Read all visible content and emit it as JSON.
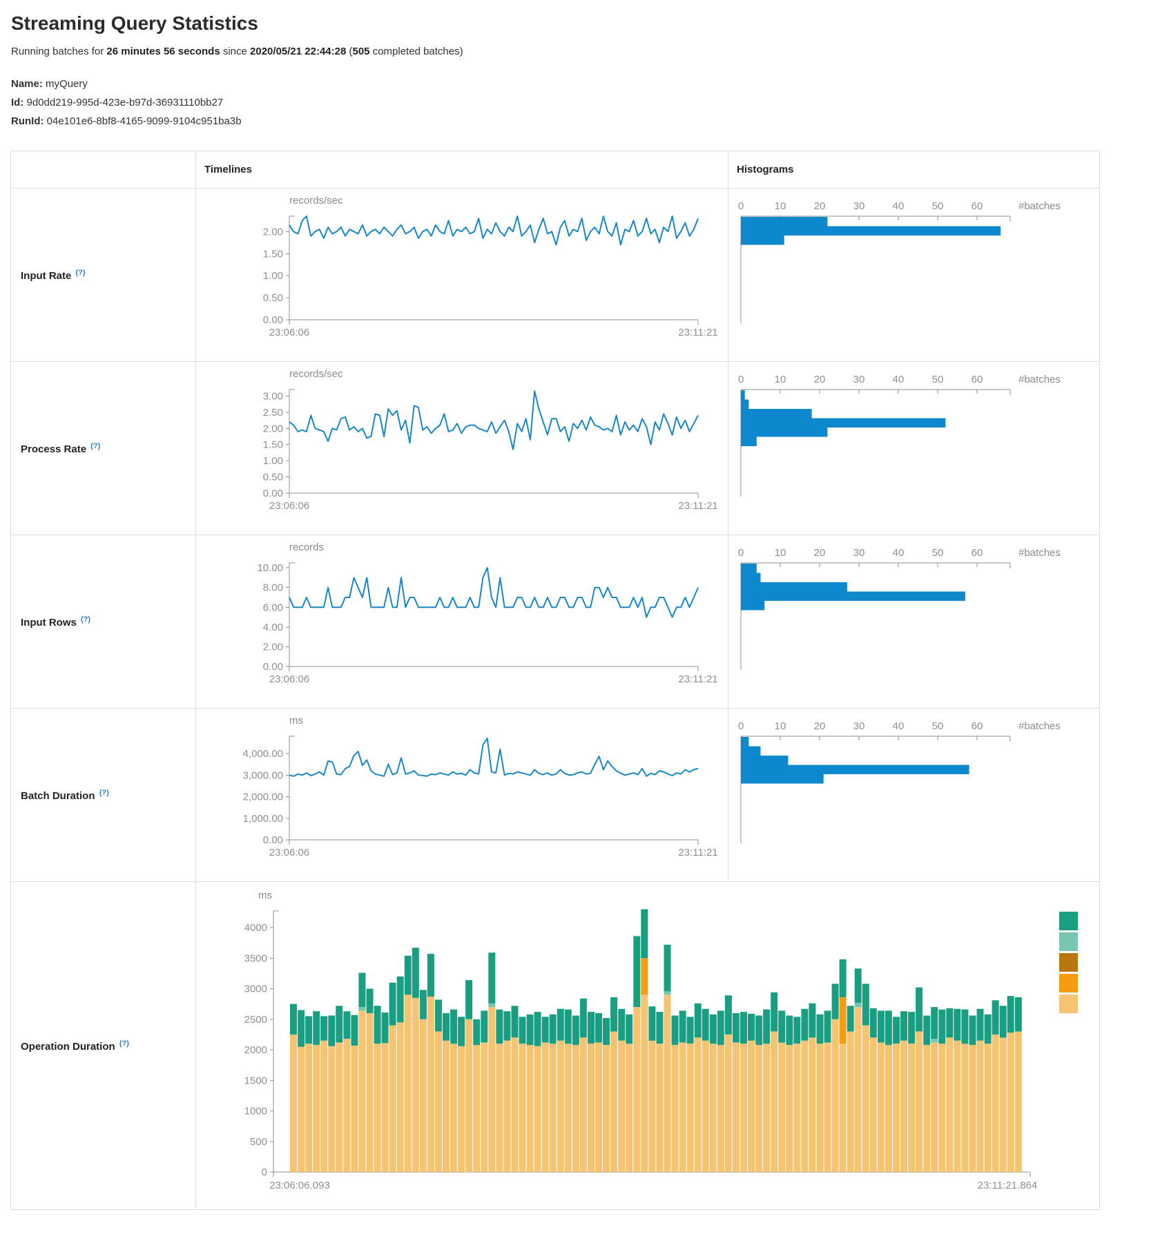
{
  "page": {
    "title": "Streaming Query Statistics",
    "summary": {
      "p1": "Running batches for ",
      "duration": "26 minutes 56 seconds",
      "p2": " since ",
      "start_time": "2020/05/21 22:44:28",
      "p3": " (",
      "completed_batches": "505",
      "p4": " completed batches)"
    },
    "name_label": "Name:",
    "name_value": "myQuery",
    "id_label": "Id:",
    "id_value": "9d0dd219-995d-423e-b97d-36931110bb27",
    "runid_label": "RunId:",
    "runid_value": "04e101e6-8bf8-4165-9099-9104c951ba3b"
  },
  "table": {
    "col_timelines": "Timelines",
    "col_histograms": "Histograms",
    "help_marker": "(?)"
  },
  "colors": {
    "line_blue": "#1787c9",
    "bar_blue": "#0e89ce",
    "axis_gray": "#8f8f8f",
    "label_gray": "#8b8b8b",
    "help_blue": "#2a7fbf",
    "stack_green": "#1a9e82",
    "stack_light_teal": "#76c6b0",
    "stack_brown": "#b8770e",
    "stack_orange": "#f39c12",
    "stack_light_orange": "#f6c470"
  },
  "chart_data": [
    {
      "type": "line+histogram",
      "label": "Input Rate",
      "unit": "records/sec",
      "x_start": "23:06:06",
      "x_end": "23:11:21",
      "ylim": [
        0,
        2.35
      ],
      "y_ticks": [
        {
          "v": 2,
          "t": "2.00"
        },
        {
          "v": 1.5,
          "t": "1.50"
        },
        {
          "v": 1,
          "t": "1.00"
        },
        {
          "v": 0.5,
          "t": "0.50"
        },
        {
          "v": 0,
          "t": "0.00"
        }
      ],
      "values": [
        2.15,
        2.0,
        1.95,
        2.25,
        2.35,
        1.9,
        2.0,
        2.05,
        1.85,
        2.1,
        1.95,
        2.0,
        2.1,
        1.9,
        2.05,
        2.0,
        1.95,
        2.15,
        1.9,
        2.0,
        2.05,
        1.95,
        2.1,
        2.0,
        1.9,
        2.05,
        2.15,
        1.95,
        2.0,
        2.1,
        1.85,
        2.0,
        2.05,
        1.9,
        2.15,
        2.0,
        1.95,
        2.25,
        1.9,
        2.05,
        2.0,
        2.1,
        1.95,
        2.0,
        2.3,
        1.85,
        2.05,
        1.95,
        2.2,
        2.0,
        1.9,
        2.1,
        2.0,
        2.35,
        1.9,
        2.0,
        2.15,
        1.75,
        2.05,
        2.3,
        1.95,
        2.0,
        1.7,
        2.1,
        2.25,
        1.9,
        2.05,
        2.0,
        2.3,
        1.8,
        2.0,
        2.1,
        1.95,
        2.35,
        2.0,
        1.9,
        2.2,
        1.7,
        2.05,
        2.0,
        2.25,
        1.9,
        2.0,
        2.3,
        1.95,
        2.05,
        1.75,
        2.1,
        2.0,
        2.35,
        1.85,
        2.0,
        2.2,
        1.9,
        2.05,
        2.3
      ],
      "histogram": {
        "xlabel": "#batches",
        "ticks": [
          0,
          10,
          20,
          30,
          40,
          50,
          60
        ],
        "values": [
          22,
          66,
          11
        ]
      }
    },
    {
      "type": "line+histogram",
      "label": "Process Rate",
      "unit": "records/sec",
      "x_start": "23:06:06",
      "x_end": "23:11:21",
      "ylim": [
        0,
        3.2
      ],
      "y_ticks": [
        {
          "v": 3,
          "t": "3.00"
        },
        {
          "v": 2.5,
          "t": "2.50"
        },
        {
          "v": 2,
          "t": "2.00"
        },
        {
          "v": 1.5,
          "t": "1.50"
        },
        {
          "v": 1,
          "t": "1.00"
        },
        {
          "v": 0.5,
          "t": "0.50"
        },
        {
          "v": 0,
          "t": "0.00"
        }
      ],
      "values": [
        2.2,
        2.1,
        1.9,
        1.95,
        1.9,
        2.4,
        2.0,
        1.95,
        1.9,
        1.6,
        2.0,
        1.95,
        2.3,
        2.35,
        1.95,
        2.05,
        1.9,
        2.0,
        1.7,
        1.75,
        2.45,
        2.4,
        1.75,
        2.6,
        2.4,
        2.55,
        1.95,
        2.25,
        1.55,
        2.7,
        2.65,
        1.95,
        2.05,
        1.85,
        2.0,
        2.1,
        2.45,
        1.9,
        1.95,
        2.15,
        1.85,
        2.05,
        2.1,
        2.1,
        2.0,
        1.95,
        1.9,
        2.2,
        1.85,
        2.05,
        2.25,
        1.9,
        1.35,
        2.15,
        1.9,
        2.3,
        1.65,
        3.15,
        2.6,
        2.2,
        1.8,
        2.3,
        2.3,
        1.9,
        2.05,
        1.6,
        2.15,
        2.0,
        2.25,
        1.95,
        2.35,
        2.1,
        2.05,
        1.95,
        2.0,
        1.9,
        2.4,
        1.8,
        2.2,
        1.95,
        2.1,
        1.9,
        2.3,
        2.05,
        1.5,
        2.2,
        1.95,
        2.45,
        2.15,
        1.8,
        2.35,
        2.0,
        2.25,
        1.9,
        2.15,
        2.4
      ],
      "histogram": {
        "xlabel": "#batches",
        "ticks": [
          0,
          10,
          20,
          30,
          40,
          50,
          60
        ],
        "values": [
          1,
          2,
          18,
          52,
          22,
          4
        ]
      }
    },
    {
      "type": "line+histogram",
      "label": "Input Rows",
      "unit": "records",
      "x_start": "23:06:06",
      "x_end": "23:11:21",
      "ylim": [
        0,
        10.5
      ],
      "y_ticks": [
        {
          "v": 10,
          "t": "10.00"
        },
        {
          "v": 8,
          "t": "8.00"
        },
        {
          "v": 6,
          "t": "6.00"
        },
        {
          "v": 4,
          "t": "4.00"
        },
        {
          "v": 2,
          "t": "2.00"
        },
        {
          "v": 0,
          "t": "0.00"
        }
      ],
      "values": [
        7,
        6,
        6,
        6,
        7,
        6,
        6,
        6,
        6,
        8,
        6,
        6,
        6,
        7,
        7,
        9,
        8,
        7,
        9,
        6,
        6,
        6,
        6,
        8,
        6,
        6,
        9,
        6,
        7,
        7,
        6,
        6,
        6,
        6,
        6,
        7,
        6,
        6,
        7,
        6,
        6,
        6,
        7,
        6,
        6,
        9,
        10,
        7,
        6,
        9,
        6,
        6,
        6,
        7,
        7,
        6,
        6,
        7,
        6,
        6,
        7,
        6,
        6,
        7,
        7,
        6,
        6,
        7,
        7,
        6,
        6,
        8,
        8,
        7,
        8,
        7,
        7,
        6,
        6,
        6,
        7,
        6,
        7,
        5,
        6,
        6,
        7,
        7,
        6,
        5,
        6,
        6,
        7,
        6,
        7,
        8
      ],
      "histogram": {
        "xlabel": "#batches",
        "ticks": [
          0,
          10,
          20,
          30,
          40,
          50,
          60
        ],
        "values": [
          4,
          5,
          27,
          57,
          6
        ]
      }
    },
    {
      "type": "line+histogram",
      "label": "Batch Duration",
      "unit": "ms",
      "x_start": "23:06:06",
      "x_end": "23:11:21",
      "ylim": [
        0,
        4800
      ],
      "y_ticks": [
        {
          "v": 4000,
          "t": "4,000.00"
        },
        {
          "v": 3000,
          "t": "3,000.00"
        },
        {
          "v": 2000,
          "t": "2,000.00"
        },
        {
          "v": 1000,
          "t": "1,000.00"
        },
        {
          "v": 0,
          "t": "0.00"
        }
      ],
      "values": [
        3000,
        2950,
        3050,
        3000,
        3100,
        2980,
        3050,
        3150,
        3000,
        3650,
        3600,
        3050,
        3020,
        3300,
        3400,
        3900,
        4100,
        3450,
        3700,
        3200,
        3050,
        3000,
        2950,
        3500,
        3020,
        3100,
        3800,
        3050,
        3100,
        3200,
        3000,
        2980,
        2950,
        3050,
        3020,
        3100,
        3050,
        3000,
        3150,
        3050,
        3080,
        3000,
        3250,
        3100,
        3050,
        4400,
        4700,
        3150,
        3100,
        4200,
        3000,
        3080,
        3050,
        3150,
        3100,
        3050,
        3000,
        3250,
        3080,
        3020,
        3100,
        3000,
        3050,
        3250,
        3080,
        3000,
        3020,
        3100,
        3150,
        3050,
        3080,
        3500,
        3870,
        3250,
        3650,
        3400,
        3200,
        3080,
        3000,
        3050,
        3100,
        3020,
        3300,
        2950,
        3080,
        3020,
        3200,
        3150,
        3050,
        2980,
        3100,
        3050,
        3250,
        3150,
        3250,
        3300
      ],
      "histogram": {
        "xlabel": "#batches",
        "ticks": [
          0,
          10,
          20,
          30,
          40,
          50,
          60
        ],
        "values": [
          2,
          5,
          12,
          58,
          21
        ]
      }
    },
    {
      "type": "stacked-bar",
      "label": "Operation Duration",
      "unit": "ms",
      "x_start": "23:06:06.093",
      "x_end": "23:11:21.864",
      "ylim": [
        0,
        4300
      ],
      "y_ticks": [
        {
          "v": 4000,
          "t": "4000"
        },
        {
          "v": 3500,
          "t": "3500"
        },
        {
          "v": 3000,
          "t": "3000"
        },
        {
          "v": 2500,
          "t": "2500"
        },
        {
          "v": 2000,
          "t": "2000"
        },
        {
          "v": 1500,
          "t": "1500"
        },
        {
          "v": 1000,
          "t": "1000"
        },
        {
          "v": 500,
          "t": "500"
        },
        {
          "v": 0,
          "t": "0"
        }
      ],
      "series": [
        {
          "name": "light-orange",
          "color": "#f6c470",
          "values": [
            2250,
            2050,
            2100,
            2080,
            2150,
            2060,
            2120,
            2180,
            2070,
            2640,
            2600,
            2100,
            2110,
            2400,
            2450,
            2900,
            2850,
            2500,
            2870,
            2300,
            2150,
            2100,
            2060,
            2500,
            2080,
            2120,
            2700,
            2100,
            2150,
            2200,
            2100,
            2080,
            2060,
            2120,
            2100,
            2150,
            2100,
            2080,
            2200,
            2100,
            2120,
            2080,
            2300,
            2150,
            2100,
            2700,
            2900,
            2150,
            2100,
            2900,
            2080,
            2120,
            2100,
            2200,
            2150,
            2100,
            2080,
            2250,
            2120,
            2100,
            2150,
            2080,
            2100,
            2300,
            2120,
            2080,
            2100,
            2150,
            2200,
            2100,
            2120,
            2500,
            2100,
            2300,
            2700,
            2400,
            2200,
            2120,
            2080,
            2100,
            2150,
            2100,
            2300,
            2080,
            2120,
            2100,
            2200,
            2150,
            2100,
            2080,
            2150,
            2100,
            2250,
            2200,
            2280,
            2300
          ]
        },
        {
          "name": "orange",
          "color": "#f39c12",
          "sparse": {
            "46": 600,
            "72": 760
          }
        },
        {
          "name": "light-teal",
          "color": "#76c6b0",
          "sparse": {
            "9": 60,
            "26": 60,
            "49": 60,
            "74": 70,
            "84": 60
          }
        },
        {
          "name": "green",
          "color": "#1a9e82",
          "values": [
            500,
            600,
            450,
            550,
            400,
            500,
            600,
            450,
            500,
            560,
            400,
            620,
            500,
            700,
            750,
            640,
            820,
            480,
            700,
            520,
            450,
            560,
            480,
            640,
            420,
            520,
            830,
            560,
            480,
            520,
            440,
            500,
            560,
            420,
            480,
            520,
            560,
            480,
            640,
            520,
            480,
            440,
            560,
            520,
            480,
            1160,
            800,
            560,
            520,
            760,
            480,
            520,
            440,
            560,
            520,
            480,
            560,
            640,
            480,
            520,
            440,
            480,
            560,
            640,
            520,
            480,
            440,
            520,
            560,
            480,
            520,
            580,
            620,
            420,
            560,
            680,
            480,
            520,
            560,
            440,
            480,
            520,
            720,
            480,
            520,
            560,
            480,
            520,
            560,
            480,
            520,
            480,
            560,
            520,
            600,
            560
          ]
        }
      ],
      "legend_colors": [
        "#1a9e82",
        "#76c6b0",
        "#b8770e",
        "#f39c12",
        "#f6c470"
      ]
    }
  ]
}
